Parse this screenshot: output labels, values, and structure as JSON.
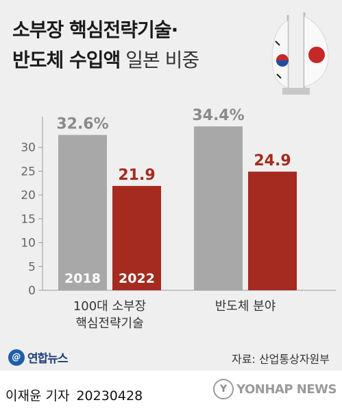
{
  "title": {
    "line1": "소부장 핵심전략기술·",
    "line2_bold": "반도체 수입액",
    "line2_light": "일본 비중"
  },
  "chart_data": {
    "type": "bar",
    "title": "소부장 핵심전략기술· 반도체 수입액 일본 비중",
    "categories": [
      [
        "100대 소부장",
        "핵심전략기술"
      ],
      [
        "반도체 분야"
      ]
    ],
    "series": [
      {
        "name": "2018",
        "values": [
          32.6,
          34.4
        ],
        "color": "#a8a8a8"
      },
      {
        "name": "2022",
        "values": [
          21.9,
          24.9
        ],
        "color": "#a52a1f"
      }
    ],
    "value_labels": [
      [
        "32.6%",
        "34.4%"
      ],
      [
        "21.9",
        "24.9"
      ]
    ],
    "value_label_colors": [
      "#8a8a8a",
      "#a52a1f"
    ],
    "ylim": [
      0,
      35
    ],
    "yticks": [
      0,
      5,
      10,
      15,
      20,
      25,
      30
    ],
    "legend_placement": "inside-bars",
    "grid": false
  },
  "flags_icon": "korea-japan-flags-icon",
  "footer": {
    "logo_mark": "@",
    "logo_text": "연합뉴스",
    "source": "자료: 산업통상자원부",
    "reporter": "이재윤 기자",
    "date": "20230428",
    "agency_mark": "Y",
    "agency": "YONHAP NEWS"
  }
}
